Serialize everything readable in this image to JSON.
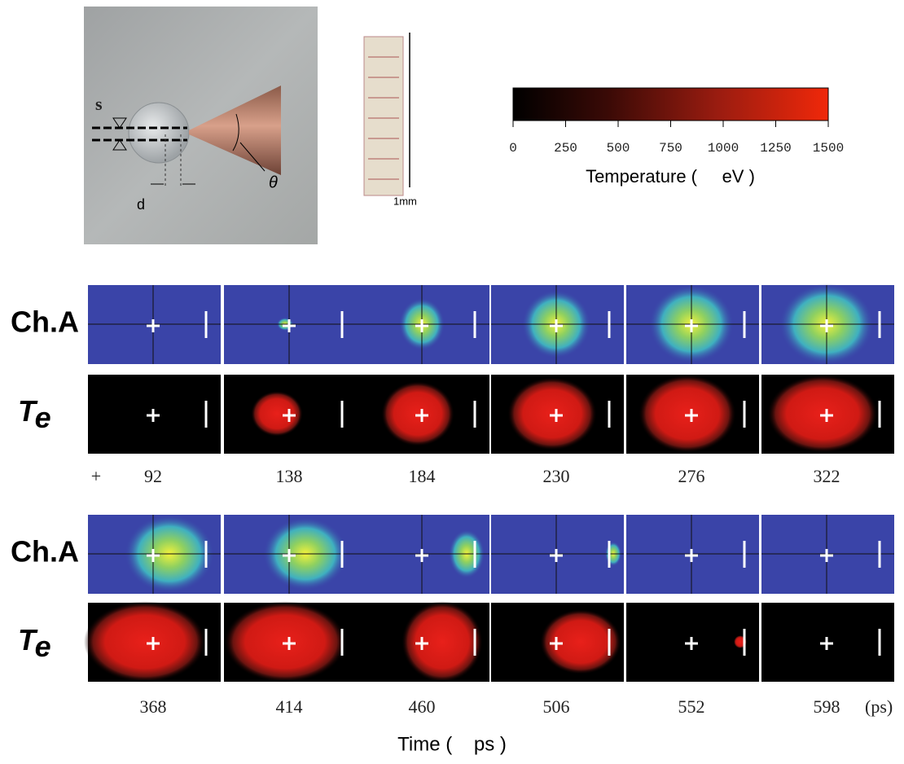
{
  "photo": {
    "labels": {
      "gap": "s",
      "distance": "d",
      "angle": "θ",
      "scale": "1mm"
    }
  },
  "colorbar": {
    "ticks": [
      0,
      250,
      500,
      750,
      1000,
      1250,
      1500
    ],
    "label": "Temperature (     eV )"
  },
  "row_labels": {
    "channel": "Ch.A",
    "temperature_main": "T",
    "temperature_sub": "e"
  },
  "times": {
    "marker": "+",
    "row1": [
      92,
      138,
      184,
      230,
      276,
      322
    ],
    "row2": [
      368,
      414,
      460,
      506,
      552,
      598
    ],
    "unit": "(ps)",
    "axis_label": "Time (    ps )"
  }
}
